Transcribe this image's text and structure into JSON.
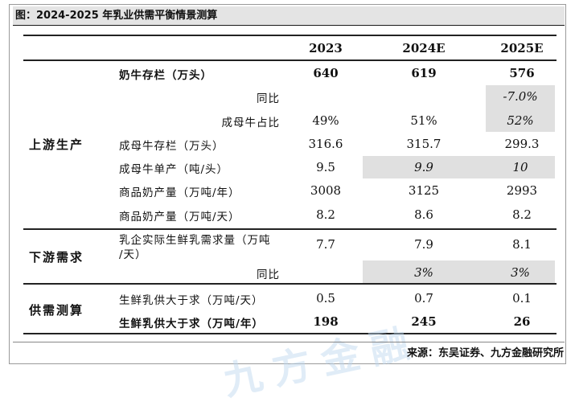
{
  "figure_title": "图：2024-2025 年乳业供需平衡情景测算",
  "columns": [
    "2023",
    "2024E",
    "2025E"
  ],
  "sections": {
    "upstream": "上游生产",
    "downstream": "下游需求",
    "balance": "供需测算"
  },
  "rows": [
    {
      "label": "奶牛存栏（万头）",
      "values": [
        "640",
        "619",
        "576"
      ]
    },
    {
      "label": "同比",
      "values": [
        "",
        "",
        "-7.0%"
      ]
    },
    {
      "label": "成母牛占比",
      "values": [
        "49%",
        "51%",
        "52%"
      ]
    },
    {
      "label": "成母牛存栏（万头）",
      "values": [
        "316.6",
        "315.7",
        "299.3"
      ]
    },
    {
      "label": "成母牛单产（吨/头）",
      "values": [
        "9.5",
        "9.9",
        "10"
      ]
    },
    {
      "label": "商品奶产量（万吨/年）",
      "values": [
        "3008",
        "3125",
        "2993"
      ]
    },
    {
      "label": "商品奶产量（万吨/天）",
      "values": [
        "8.2",
        "8.6",
        "8.2"
      ]
    },
    {
      "label_line1": "乳企实际生鲜乳需求量（万吨",
      "label_line2": "/天）",
      "values": [
        "7.7",
        "7.9",
        "8.1"
      ]
    },
    {
      "label": "同比",
      "values": [
        "",
        "3%",
        "3%"
      ]
    },
    {
      "label": "生鲜乳供大于求（万吨/天）",
      "values": [
        "0.5",
        "0.7",
        "0.1"
      ]
    },
    {
      "label": "生鲜乳供大于求（万吨/年）",
      "values": [
        "198",
        "245",
        "26"
      ]
    }
  ],
  "source": "来源：东吴证券、九方金融研究所",
  "watermark": "九方金融"
}
